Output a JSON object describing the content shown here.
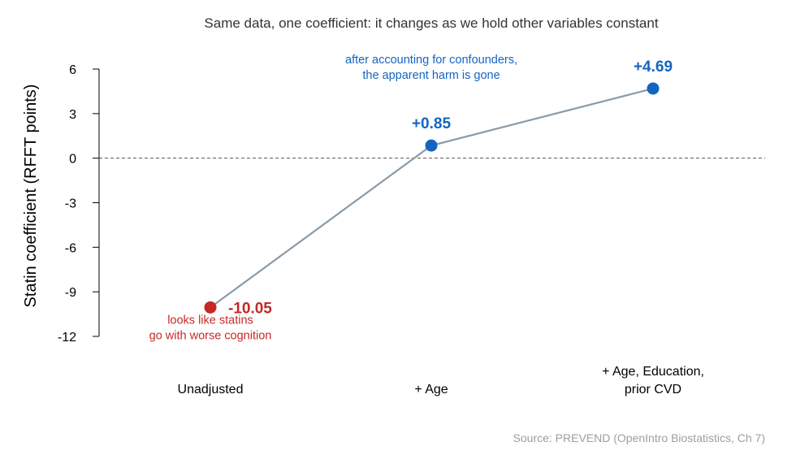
{
  "chart_data": {
    "type": "line",
    "title": "Same data, one coefficient: it changes as we hold other variables constant",
    "ylabel": "Statin coefficient (RFFT points)",
    "xlabel": "",
    "ylim": [
      -12,
      6
    ],
    "yticks": [
      6,
      3,
      0,
      -3,
      -6,
      -9,
      -12
    ],
    "reference_line": {
      "y": 0,
      "style": "dashed"
    },
    "categories": [
      [
        "Unadjusted"
      ],
      [
        "+ Age"
      ],
      [
        "+ Age, Education,",
        "prior CVD"
      ]
    ],
    "values": [
      -10.05,
      0.85,
      4.69
    ],
    "value_labels": [
      "-10.05",
      "+0.85",
      "+4.69"
    ],
    "point_colors": [
      "#c62828",
      "#1565c0",
      "#1565c0"
    ],
    "line_color": "#8a9ba8",
    "annotations": [
      {
        "point": 0,
        "lines": [
          "looks like statins",
          "go with worse cognition"
        ],
        "color": "#c62828"
      },
      {
        "point": 1,
        "lines": [
          "after accounting for confounders,",
          "the apparent harm is gone"
        ],
        "color": "#1565c0"
      }
    ],
    "source": "Source: PREVEND (OpenIntro Biostatistics, Ch 7)"
  }
}
